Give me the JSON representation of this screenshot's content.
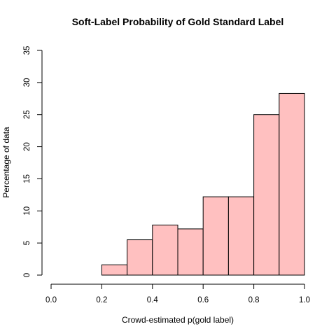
{
  "chart_data": {
    "type": "bar",
    "title": "Soft-Label Probability of Gold Standard Label",
    "xlabel": "Crowd-estimated p(gold label)",
    "ylabel": "Percentage of data",
    "xlim": [
      0,
      1
    ],
    "ylim": [
      0,
      35
    ],
    "x_ticks": [
      "0.0",
      "0.2",
      "0.4",
      "0.6",
      "0.8",
      "1.0"
    ],
    "y_ticks": [
      "0",
      "5",
      "10",
      "15",
      "20",
      "25",
      "30",
      "35"
    ],
    "bins": [
      {
        "start": 0.2,
        "end": 0.3,
        "value": 1.6
      },
      {
        "start": 0.3,
        "end": 0.4,
        "value": 5.5
      },
      {
        "start": 0.4,
        "end": 0.5,
        "value": 7.8
      },
      {
        "start": 0.5,
        "end": 0.6,
        "value": 7.2
      },
      {
        "start": 0.6,
        "end": 0.7,
        "value": 12.2
      },
      {
        "start": 0.7,
        "end": 0.8,
        "value": 12.2
      },
      {
        "start": 0.8,
        "end": 0.9,
        "value": 25.0
      },
      {
        "start": 0.9,
        "end": 1.0,
        "value": 28.3
      }
    ],
    "bar_color": "#ffc0c0",
    "bar_border_color": "#000000",
    "grid": false,
    "legend": "none"
  }
}
